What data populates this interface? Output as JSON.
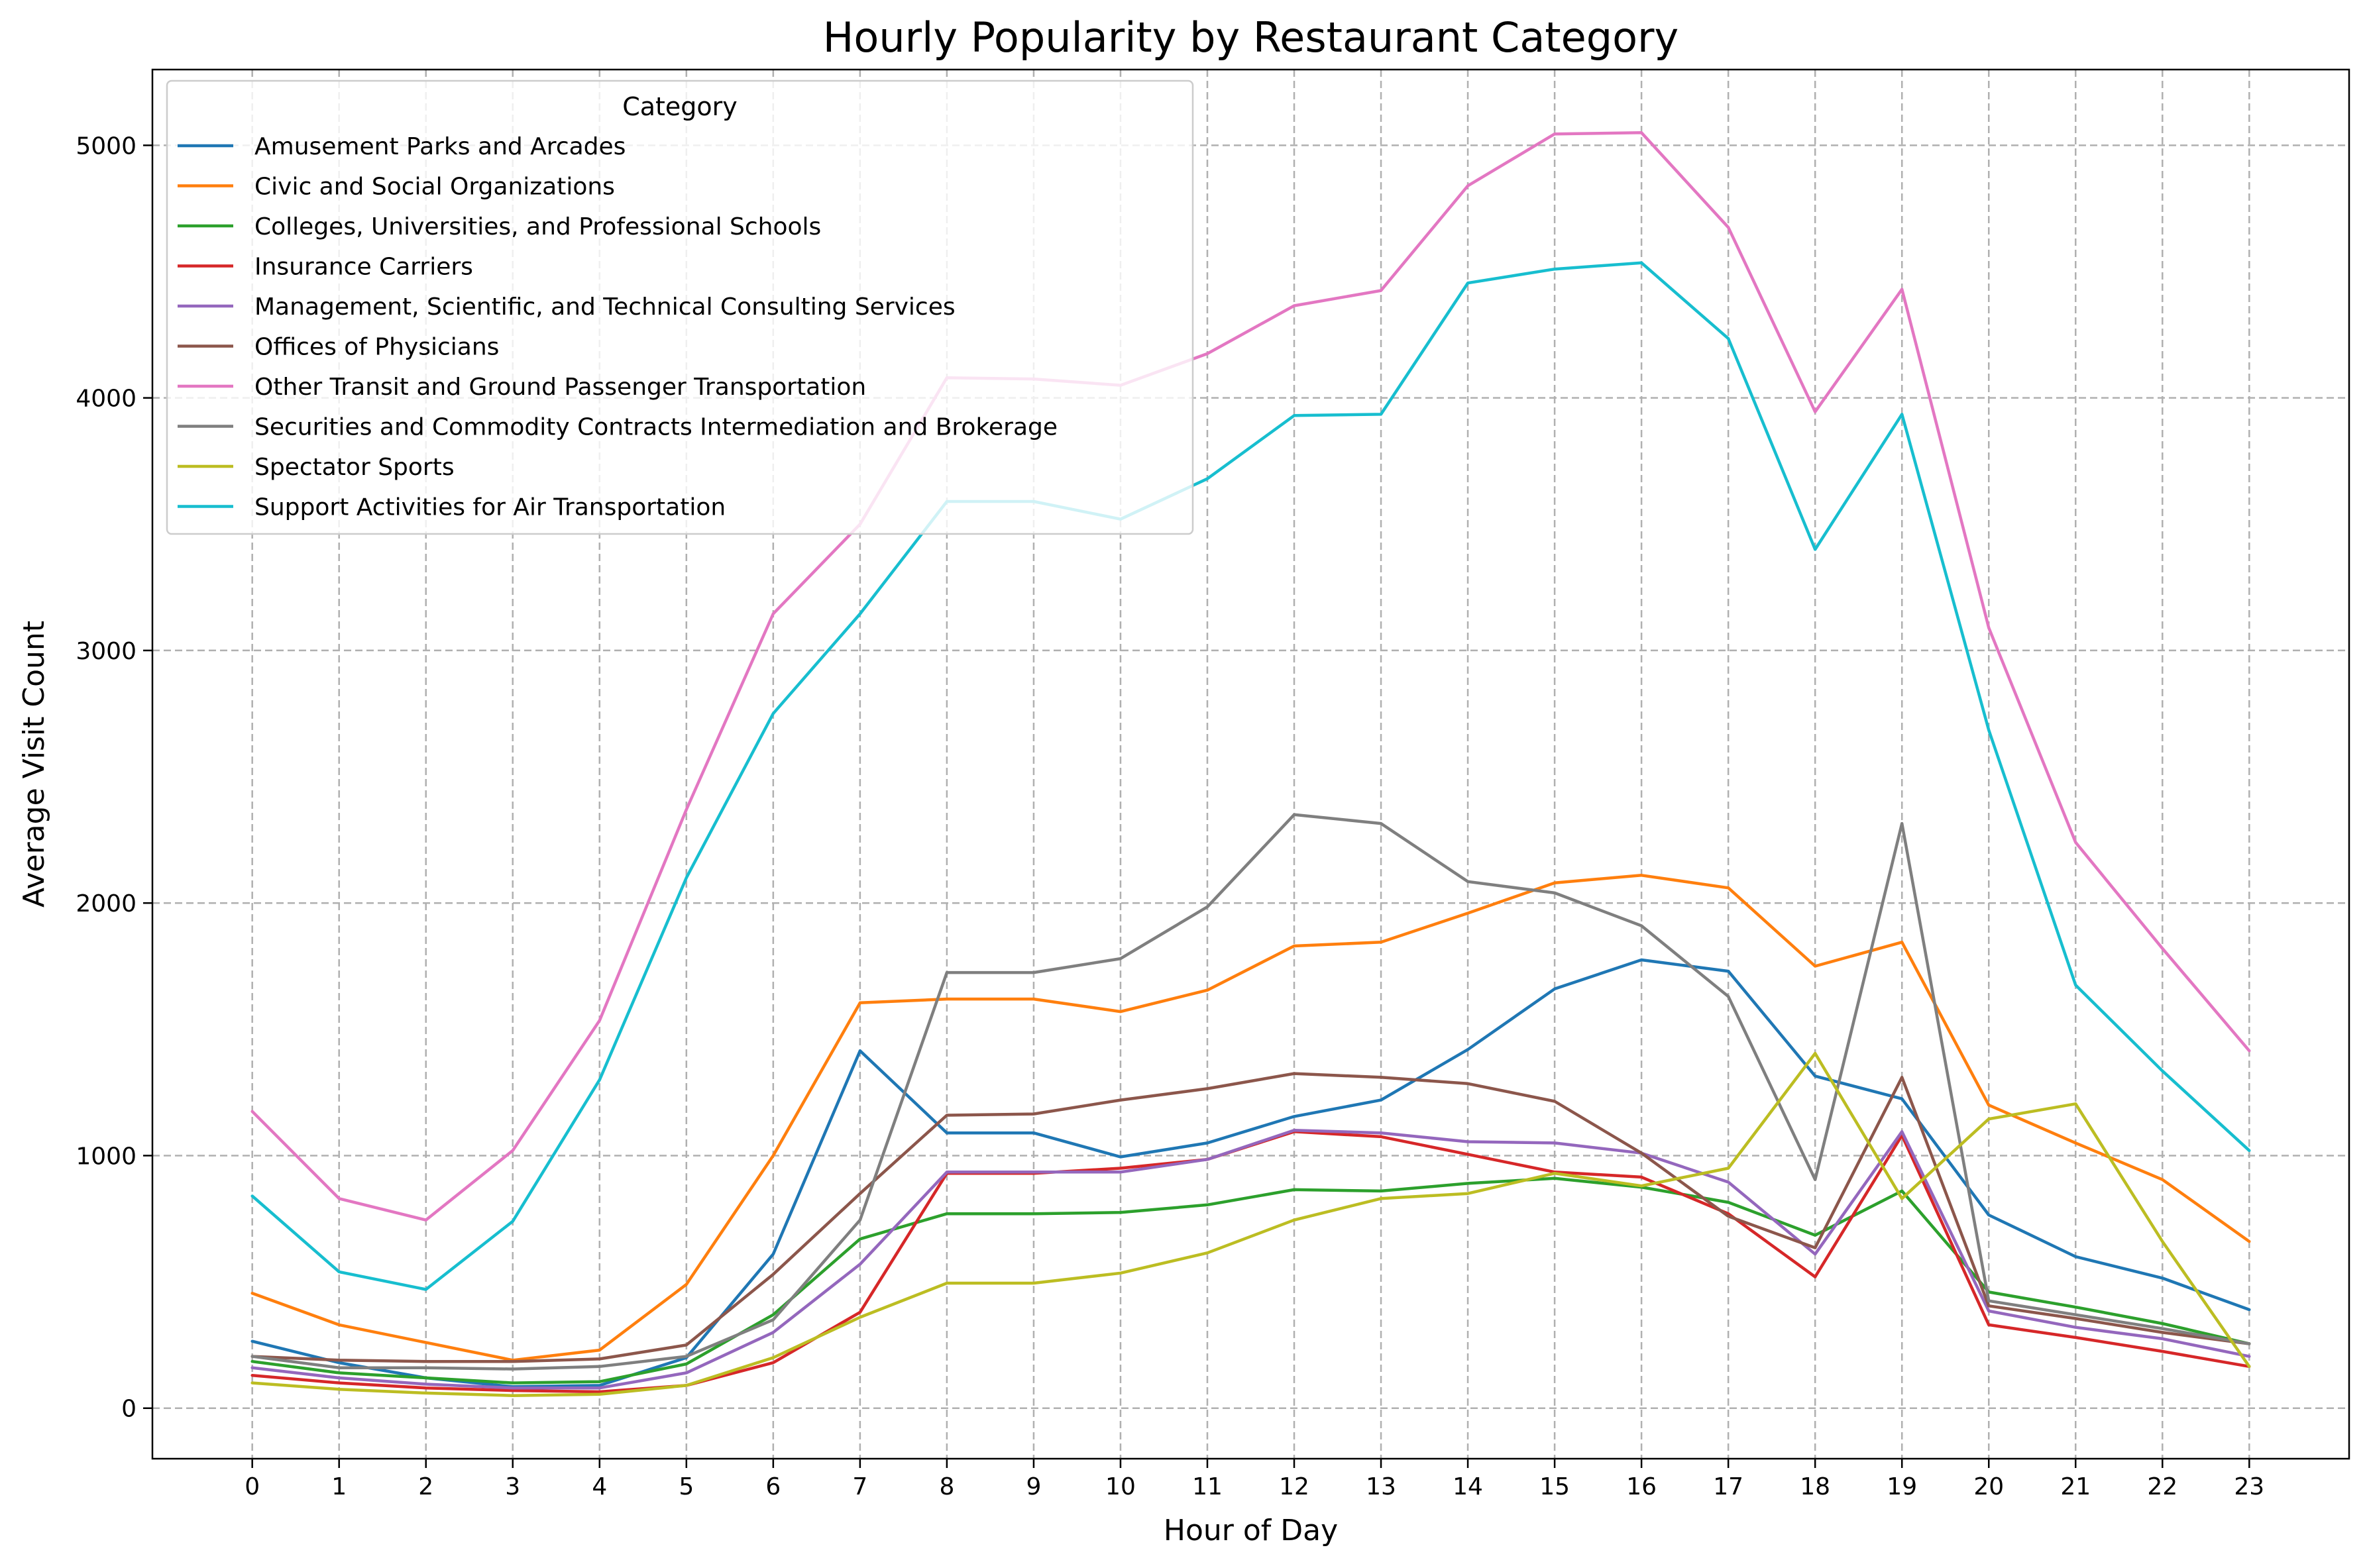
{
  "chart_data": {
    "type": "line",
    "title": "Hourly Popularity by Restaurant Category",
    "xlabel": "Hour of Day",
    "ylabel": "Average Visit Count",
    "x": [
      0,
      1,
      2,
      3,
      4,
      5,
      6,
      7,
      8,
      9,
      10,
      11,
      12,
      13,
      14,
      15,
      16,
      17,
      18,
      19,
      20,
      21,
      22,
      23
    ],
    "xlim": [
      -1.15,
      24.15
    ],
    "ylim": [
      -200,
      5300
    ],
    "yticks": [
      0,
      1000,
      2000,
      3000,
      4000,
      5000
    ],
    "grid": true,
    "legend": {
      "title": "Category",
      "placement": "top-left"
    },
    "series": [
      {
        "name": "Amusement Parks and Arcades",
        "color": "#1f77b4",
        "values": [
          265,
          180,
          120,
          85,
          90,
          200,
          610,
          1415,
          1090,
          1090,
          995,
          1050,
          1155,
          1220,
          1420,
          1660,
          1775,
          1730,
          1315,
          1225,
          765,
          600,
          515,
          390
        ]
      },
      {
        "name": "Civic and Social Organizations",
        "color": "#ff7f0e",
        "values": [
          455,
          330,
          260,
          190,
          230,
          490,
          1000,
          1605,
          1620,
          1620,
          1570,
          1655,
          1830,
          1845,
          1960,
          2080,
          2110,
          2060,
          1750,
          1845,
          1200,
          1050,
          905,
          660
        ]
      },
      {
        "name": "Colleges, Universities, and Professional Schools",
        "color": "#2ca02c",
        "values": [
          185,
          140,
          120,
          100,
          105,
          175,
          370,
          670,
          770,
          770,
          775,
          805,
          865,
          860,
          890,
          910,
          875,
          815,
          685,
          860,
          460,
          400,
          335,
          255
        ]
      },
      {
        "name": "Insurance Carriers",
        "color": "#d62728",
        "values": [
          130,
          100,
          80,
          70,
          65,
          90,
          180,
          380,
          930,
          930,
          950,
          985,
          1095,
          1075,
          1005,
          935,
          915,
          770,
          520,
          1080,
          330,
          280,
          225,
          165
        ]
      },
      {
        "name": "Management, Scientific, and Technical Consulting Services",
        "color": "#9467bd",
        "values": [
          160,
          120,
          95,
          80,
          80,
          140,
          300,
          570,
          935,
          935,
          935,
          985,
          1100,
          1090,
          1055,
          1050,
          1010,
          895,
          610,
          1095,
          385,
          320,
          275,
          205
        ]
      },
      {
        "name": "Offices of Physicians",
        "color": "#8c564b",
        "values": [
          205,
          190,
          185,
          185,
          195,
          250,
          530,
          850,
          1160,
          1165,
          1220,
          1265,
          1325,
          1310,
          1285,
          1215,
          1010,
          760,
          635,
          1310,
          405,
          355,
          300,
          255
        ]
      },
      {
        "name": "Other Transit and Ground Passenger Transportation",
        "color": "#e377c2",
        "values": [
          1175,
          830,
          745,
          1020,
          1535,
          2370,
          3145,
          3500,
          4080,
          4075,
          4050,
          4175,
          4365,
          4425,
          4840,
          5045,
          5050,
          4675,
          3945,
          4430,
          3090,
          2240,
          1820,
          1415
        ]
      },
      {
        "name": "Securities and Commodity Contracts Intermediation and Brokerage",
        "color": "#7f7f7f",
        "values": [
          205,
          160,
          160,
          155,
          165,
          205,
          350,
          745,
          1725,
          1725,
          1780,
          1985,
          2350,
          2315,
          2085,
          2040,
          1910,
          1630,
          905,
          2315,
          425,
          370,
          315,
          255
        ]
      },
      {
        "name": "Spectator Sports",
        "color": "#bcbd22",
        "values": [
          100,
          75,
          60,
          50,
          55,
          90,
          200,
          360,
          495,
          495,
          535,
          615,
          745,
          830,
          850,
          930,
          880,
          950,
          1405,
          830,
          1145,
          1205,
          660,
          165
        ]
      },
      {
        "name": "Support Activities for Air Transportation",
        "color": "#17becf",
        "values": [
          840,
          540,
          470,
          740,
          1300,
          2100,
          2750,
          3145,
          3590,
          3590,
          3520,
          3680,
          3930,
          3935,
          4455,
          4510,
          4535,
          4235,
          3400,
          3935,
          2685,
          1675,
          1335,
          1020
        ]
      }
    ]
  }
}
